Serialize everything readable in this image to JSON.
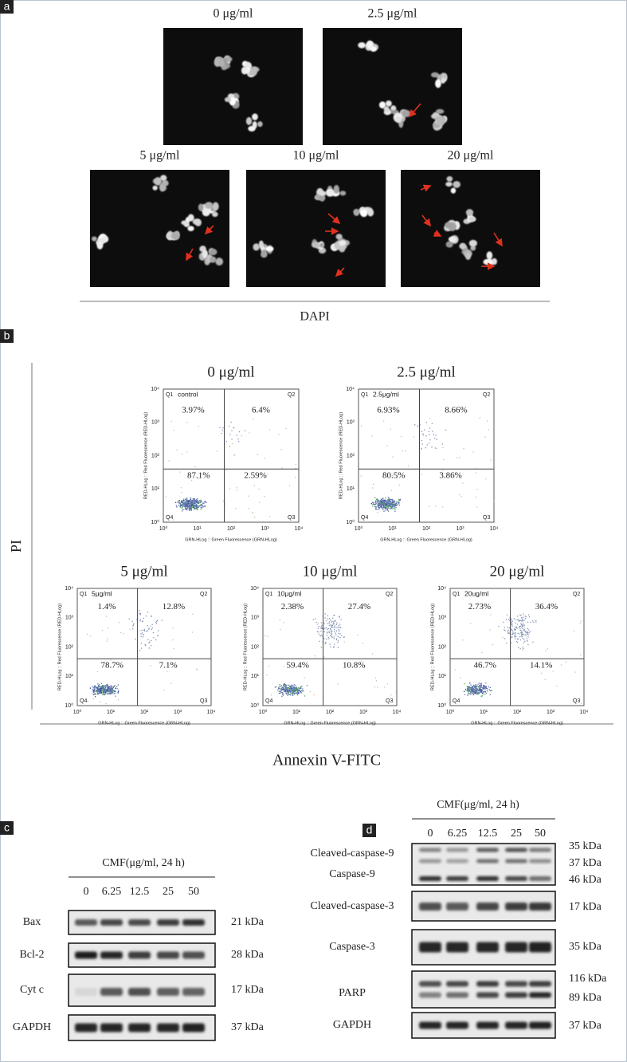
{
  "panel_a": {
    "label": "a",
    "images": [
      {
        "title": "0 μg/ml"
      },
      {
        "title": "2.5 μg/ml"
      },
      {
        "title": "5 μg/ml"
      },
      {
        "title": "10 μg/ml"
      },
      {
        "title": "20 μg/ml"
      }
    ],
    "caption": "DAPI"
  },
  "panel_b": {
    "label": "b",
    "y_label": "PI",
    "x_label": "Annexin V-FITC",
    "ticks": [
      "10⁰",
      "10¹",
      "10²",
      "10³",
      "10⁴"
    ],
    "y_axis_title": "RED-HLog :: Red Fluorescence (RED-HLog)",
    "x_axis_title": "GRN-HLog :: Green Fluorescence (GRN-HLog)",
    "quadrants": [
      "Q1",
      "Q2",
      "Q3",
      "Q4"
    ],
    "plots": [
      {
        "title": "0 μg/ml",
        "sample": "control",
        "q1": "3.97%",
        "q2": "6.4%",
        "q3": "2.59%",
        "q4": "87.1%"
      },
      {
        "title": "2.5 μg/ml",
        "sample": "2.5μg/ml",
        "q1": "6.93%",
        "q2": "8.66%",
        "q3": "3.86%",
        "q4": "80.5%"
      },
      {
        "title": "5 μg/ml",
        "sample": "5μg/ml",
        "q1": "1.4%",
        "q2": "12.8%",
        "q3": "7.1%",
        "q4": "78.7%"
      },
      {
        "title": "10 μg/ml",
        "sample": "10μg/ml",
        "q1": "2.38%",
        "q2": "27.4%",
        "q3": "10.8%",
        "q4": "59.4%"
      },
      {
        "title": "20 μg/ml",
        "sample": "20ug/ml",
        "q1": "2.73%",
        "q2": "36.4%",
        "q3": "14.1%",
        "q4": "46.7%"
      }
    ]
  },
  "panel_c": {
    "label": "c",
    "header": "CMF(μg/ml, 24 h)",
    "lanes": [
      "0",
      "6.25",
      "12.5",
      "25",
      "50"
    ],
    "blots": [
      {
        "names": [
          "Bax"
        ],
        "sizes": [
          "21 kDa"
        ]
      },
      {
        "names": [
          "Bcl-2"
        ],
        "sizes": [
          "28 kDa"
        ]
      },
      {
        "names": [
          "Cyt c"
        ],
        "sizes": [
          "17 kDa"
        ]
      },
      {
        "names": [
          "GAPDH"
        ],
        "sizes": [
          "37 kDa"
        ]
      }
    ]
  },
  "panel_d": {
    "label": "d",
    "header": "CMF(μg/ml, 24 h)",
    "lanes": [
      "0",
      "6.25",
      "12.5",
      "25",
      "50"
    ],
    "blots": [
      {
        "names": [
          "Cleaved-caspase-9",
          "Caspase-9"
        ],
        "sizes": [
          "35 kDa",
          "37 kDa",
          "46 kDa"
        ]
      },
      {
        "names": [
          "Cleaved-caspase-3"
        ],
        "sizes": [
          "17 kDa"
        ]
      },
      {
        "names": [
          "Caspase-3"
        ],
        "sizes": [
          "35 kDa"
        ]
      },
      {
        "names": [
          "PARP"
        ],
        "sizes": [
          "116 kDa",
          "89 kDa"
        ]
      },
      {
        "names": [
          "GAPDH"
        ],
        "sizes": [
          "37 kDa"
        ]
      }
    ]
  }
}
